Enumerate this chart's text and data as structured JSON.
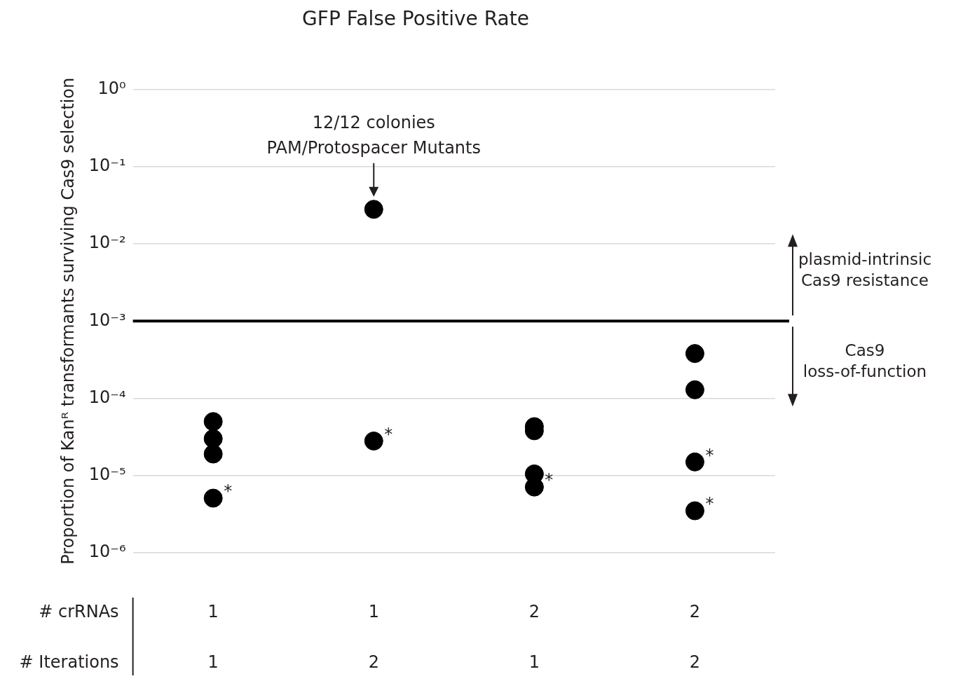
{
  "chart_data": {
    "type": "scatter",
    "title": "GFP False Positive Rate",
    "ylabel": "Proportion of Kanᴿ transformants surviving Cas9 selection",
    "xlabel": "# crRNAs\n# Iterations",
    "categories": [
      "1\n1",
      "1\n2",
      "2\n1",
      "2\n2"
    ],
    "series": [
      {
        "color": "#000000",
        "x": [
          "1\n1",
          "1\n1",
          "1\n1",
          "1\n1",
          "1\n2",
          "1\n2",
          "2\n1",
          "2\n1",
          "2\n1",
          "2\n1",
          "2\n2",
          "2\n2",
          "2\n2",
          "2\n2"
        ],
        "values": [
          5e-05,
          3e-05,
          1.9e-05,
          5.1e-06,
          0.028,
          2.8e-05,
          4.3e-05,
          3.8e-05,
          1.05e-05,
          7.1e-06,
          0.00038,
          0.000129,
          1.5e-05,
          3.5e-06
        ]
      }
    ],
    "log": "y",
    "ylim": [
      1e-06,
      1
    ],
    "yticks": [
      {
        "value": 1e-06,
        "label": "10⁻⁶"
      },
      {
        "value": 1e-05,
        "label": "10⁻⁵"
      },
      {
        "value": 0.0001,
        "label": "10⁻⁴"
      },
      {
        "value": 0.001,
        "label": "10⁻³"
      },
      {
        "value": 0.01,
        "label": "10⁻²"
      },
      {
        "value": 0.1,
        "label": "10⁻¹"
      },
      {
        "value": 1,
        "label": "10⁰"
      }
    ],
    "grid": "y",
    "marker": "circle",
    "ref_lines": [
      {
        "axis": "y",
        "value": 0.001,
        "color": "#000000"
      }
    ],
    "annotations": [
      "12/12 colonies\nPAM/Protospacer Mutants",
      {
        "text": "*",
        "x": "1\n1",
        "y": 5.1e-06
      },
      {
        "text": "*",
        "x": "1\n2",
        "y": 2.8e-05
      },
      {
        "text": "*",
        "x": "2\n1",
        "y": 7.1e-06
      },
      {
        "text": "*",
        "x": "2\n2",
        "y": 1.5e-05
      },
      {
        "text": "*",
        "x": "2\n2",
        "y": 3.5e-06
      },
      "plasmid-intrinsic\nCas9 resistance",
      "Cas9\nloss-of-function"
    ]
  }
}
